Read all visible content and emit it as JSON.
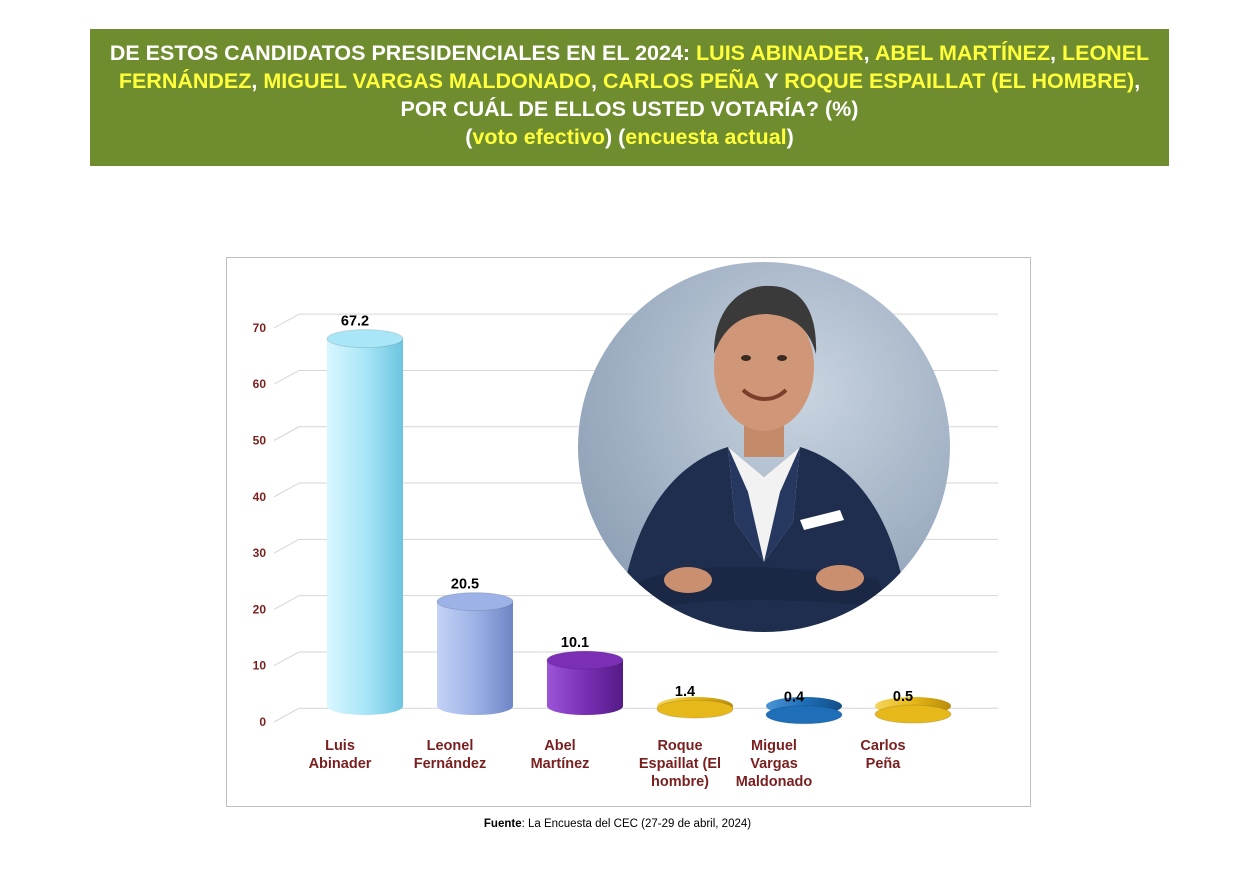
{
  "header": {
    "p1": "DE ESTOS CANDIDATOS PRESIDENCIALES EN EL 2024: ",
    "c1": "LUIS ABINADER",
    "s1": ", ",
    "c2": "ABEL MARTÍNEZ",
    "s2": ", ",
    "c3": "LEONEL FERNÁNDEZ",
    "s3": ", ",
    "c4": "MIGUEL VARGAS MALDONADO",
    "s4": ", ",
    "c5": "CARLOS PEÑA",
    "s5": " Y ",
    "c6": "ROQUE ESPAILLAT (EL HOMBRE)",
    "p2": ", POR CUÁL DE ELLOS USTED VOTARÍA? (%)",
    "o1": "(",
    "v1": "voto efectivo",
    "o2": ") (",
    "v2": "encuesta actual",
    "o3": ")"
  },
  "chart_data": {
    "type": "bar",
    "categories": [
      [
        "Luis",
        "Abinader"
      ],
      [
        "Leonel",
        "Fernández"
      ],
      [
        "Abel",
        "Martínez"
      ],
      [
        "Roque",
        "Espaillat (El",
        "hombre)"
      ],
      [
        "Miguel",
        "Vargas",
        "Maldonado"
      ],
      [
        "Carlos",
        "Peña"
      ]
    ],
    "values": [
      67.2,
      20.5,
      10.1,
      1.4,
      0.4,
      0.5
    ],
    "value_labels": [
      "67.2",
      "20.5",
      "10.1",
      "1.4",
      "0.4",
      "0.5"
    ],
    "yticks": [
      0,
      10,
      20,
      30,
      40,
      50,
      60,
      70
    ],
    "ylim": [
      0,
      74
    ],
    "grid": true,
    "legend": "none",
    "colors": [
      "#a9e6f7",
      "#9db2e6",
      "#7a2fb5",
      "#e6b81a",
      "#1e6fb8",
      "#e6b81a"
    ]
  },
  "photo": {
    "icon": "person-portrait"
  },
  "source": {
    "label": "Fuente",
    "text": ": La Encuesta del CEC (27-29 de abril, 2024)"
  }
}
